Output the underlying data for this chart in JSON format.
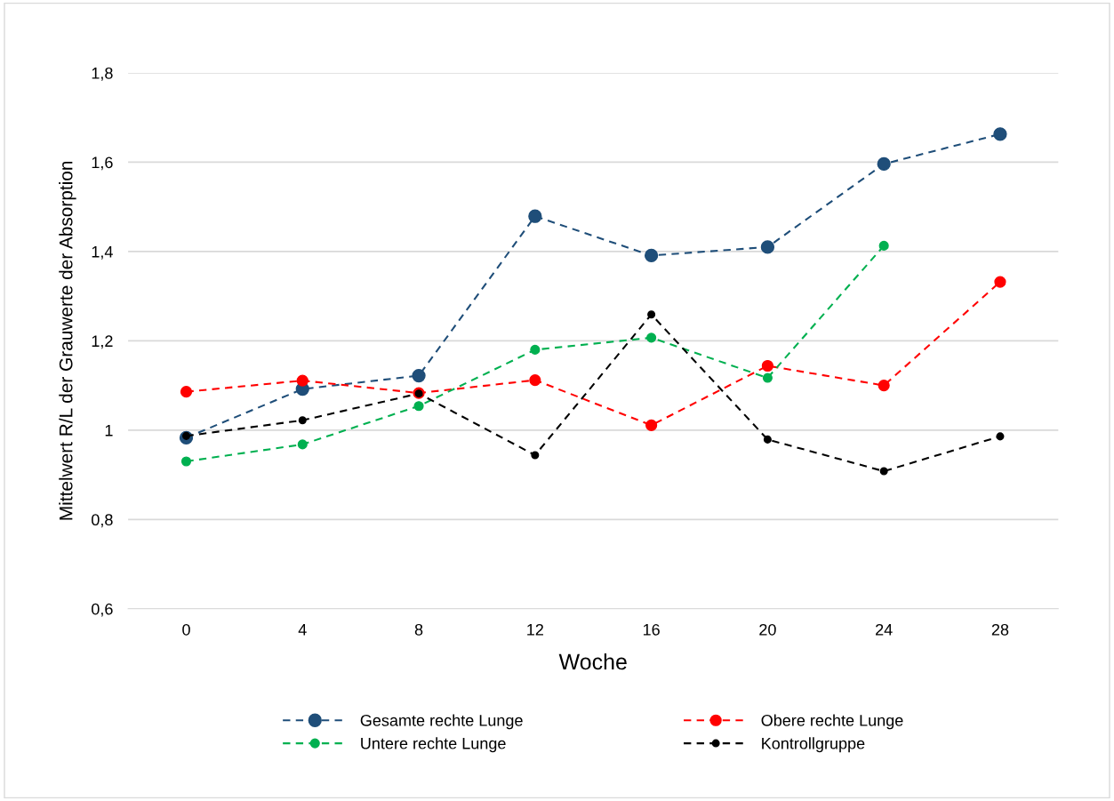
{
  "chart_data": {
    "type": "line",
    "xlabel": "Woche",
    "ylabel": "Mittelwert R/L der Grauwerte der Absorption",
    "categories": [
      "0",
      "4",
      "8",
      "12",
      "16",
      "20",
      "24",
      "28"
    ],
    "series": [
      {
        "name": "Gesamte rechte Lunge",
        "color": "#1f4e79",
        "values": [
          0.983,
          1.092,
          1.122,
          1.479,
          1.391,
          1.41,
          1.596,
          1.663
        ]
      },
      {
        "name": "Obere rechte Lunge",
        "color": "#ff0000",
        "values": [
          1.086,
          1.111,
          1.083,
          1.112,
          1.011,
          1.144,
          1.1,
          1.332
        ]
      },
      {
        "name": "Untere rechte Lunge",
        "color": "#00b050",
        "values": [
          0.93,
          0.968,
          1.054,
          1.18,
          1.207,
          1.117,
          1.413,
          null
        ]
      },
      {
        "name": "Kontrollgruppe",
        "color": "#000000",
        "values": [
          0.987,
          1.022,
          1.082,
          0.944,
          1.259,
          0.979,
          0.908,
          0.986
        ]
      }
    ],
    "ylim": [
      0.6,
      1.8
    ],
    "yticks": [
      {
        "value": 0.6,
        "label": "0,6"
      },
      {
        "value": 0.8,
        "label": "0,8"
      },
      {
        "value": 1.0,
        "label": "1"
      },
      {
        "value": 1.2,
        "label": "1,2"
      },
      {
        "value": 1.4,
        "label": "1,4"
      },
      {
        "value": 1.6,
        "label": "1,6"
      },
      {
        "value": 1.8,
        "label": "1,8"
      }
    ],
    "grid": "y",
    "legend": "bottom",
    "marker": "circle",
    "line_style": "dashed"
  }
}
